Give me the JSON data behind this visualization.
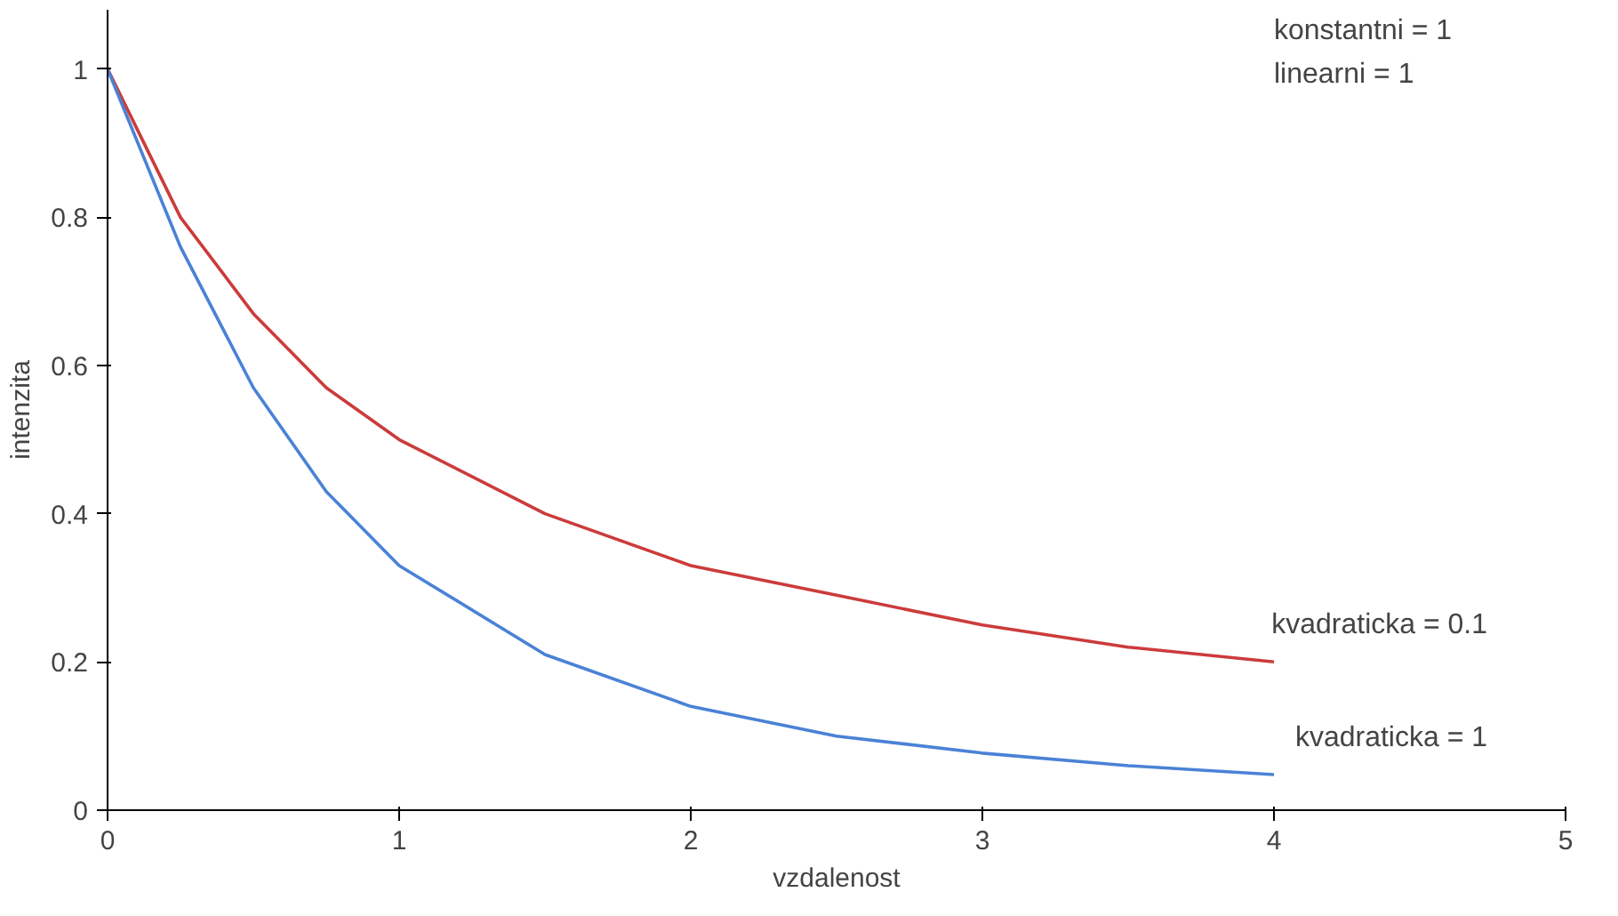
{
  "chart_data": {
    "type": "line",
    "xlabel": "vzdalenost",
    "ylabel": "intenzita",
    "x": [
      0,
      0.25,
      0.5,
      0.75,
      1,
      1.5,
      2,
      2.5,
      3,
      3.5,
      4
    ],
    "series": [
      {
        "name": "kvadraticka = 0.1",
        "color": "#cc3b3b",
        "values": [
          1,
          0.8,
          0.67,
          0.57,
          0.5,
          0.4,
          0.33,
          0.29,
          0.25,
          0.22,
          0.2
        ]
      },
      {
        "name": "kvadraticka = 1",
        "color": "#4a82d6",
        "values": [
          1,
          0.76,
          0.57,
          0.43,
          0.33,
          0.21,
          0.14,
          0.1,
          0.077,
          0.06,
          0.048
        ]
      }
    ],
    "xlim": [
      0,
      5
    ],
    "ylim": [
      0,
      1.08
    ],
    "xticks": [
      0,
      1,
      2,
      3,
      4,
      5
    ],
    "yticks": [
      0,
      0.2,
      0.4,
      0.6,
      0.8,
      1
    ],
    "grid": false,
    "marker": "none",
    "line_style": "solid",
    "annotations": [
      "konstantni = 1",
      "linearni = 1"
    ]
  }
}
